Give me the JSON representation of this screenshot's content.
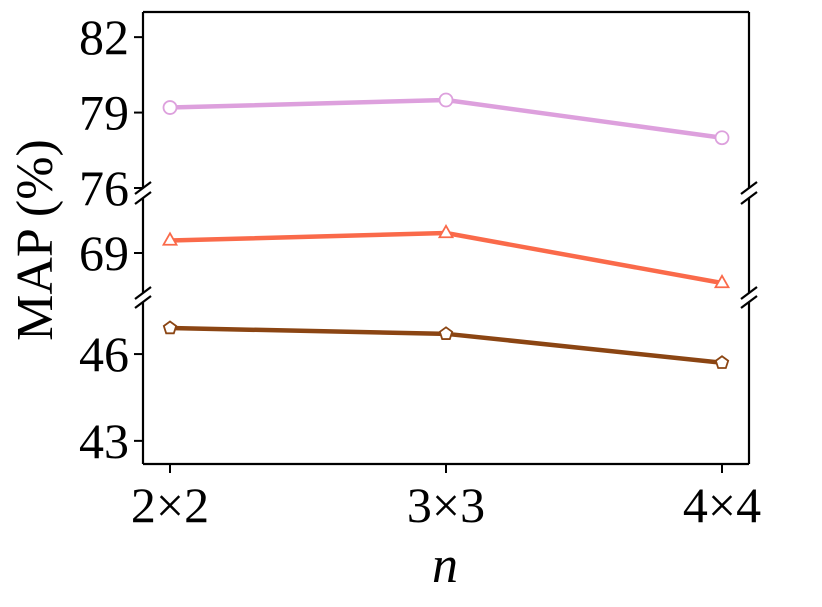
{
  "chart_data": {
    "type": "line",
    "title": "",
    "xlabel": "n",
    "ylabel": "MAP (%)",
    "categories": [
      "2×2",
      "3×3",
      "4×4"
    ],
    "broken_axis": true,
    "panels": [
      {
        "ylim": [
          76,
          83
        ],
        "yticks": [
          "76",
          "79",
          "82"
        ]
      },
      {
        "ylim": [
          67.4,
          71.2
        ],
        "yticks": [
          "69"
        ]
      },
      {
        "ylim": [
          42.2,
          47.8
        ],
        "yticks": [
          "43",
          "46"
        ]
      }
    ],
    "series": [
      {
        "values": [
          79.2,
          79.5,
          78.0
        ],
        "color": "#dda0dd",
        "marker": "circle",
        "panel": 0
      },
      {
        "values": [
          69.5,
          69.8,
          67.8
        ],
        "color": "#fa6a4a",
        "marker": "triangle",
        "panel": 1
      },
      {
        "values": [
          46.9,
          46.7,
          45.7
        ],
        "color": "#8b4513",
        "marker": "pentagon",
        "panel": 2
      }
    ],
    "grid": false,
    "legend": "none"
  }
}
